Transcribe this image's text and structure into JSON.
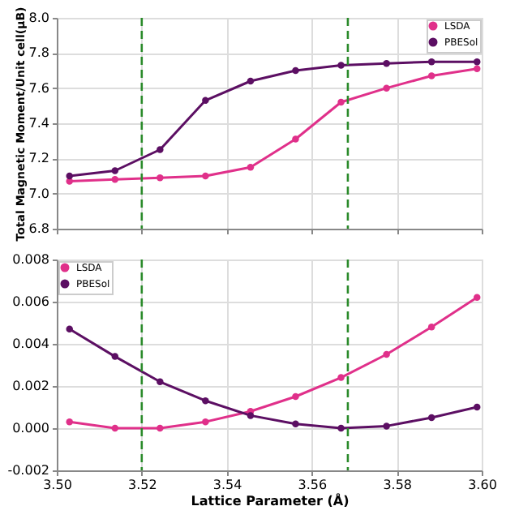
{
  "chart_data": [
    {
      "type": "line",
      "ylabel": "Total Magnetic Moment/Unit cell(μB)",
      "x": [
        3.503,
        3.5137,
        3.5243,
        3.535,
        3.5456,
        3.5562,
        3.5669,
        3.5776,
        3.5882,
        3.5989
      ],
      "series": [
        {
          "name": "LSDA",
          "color": "#e0308a",
          "values": [
            7.07,
            7.08,
            7.09,
            7.1,
            7.15,
            7.31,
            7.52,
            7.6,
            7.67,
            7.71
          ]
        },
        {
          "name": "PBESol",
          "color": "#5c0f63",
          "values": [
            7.1,
            7.13,
            7.25,
            7.53,
            7.64,
            7.7,
            7.73,
            7.74,
            7.75,
            7.75
          ]
        }
      ],
      "xlim": [
        3.5,
        3.6
      ],
      "xticks": [
        {
          "value": 3.5,
          "label": null
        },
        {
          "value": 3.52,
          "label": null
        },
        {
          "value": 3.54,
          "label": null
        },
        {
          "value": 3.56,
          "label": null
        },
        {
          "value": 3.58,
          "label": null
        },
        {
          "value": 3.6,
          "label": null
        }
      ],
      "ylim": [
        6.8,
        8.0
      ],
      "yticks": [
        {
          "value": 6.8,
          "label": "6.8"
        },
        {
          "value": 7.0,
          "label": "7.0"
        },
        {
          "value": 7.2,
          "label": "7.2"
        },
        {
          "value": 7.4,
          "label": "7.4"
        },
        {
          "value": 7.6,
          "label": "7.6"
        },
        {
          "value": 7.8,
          "label": "7.8"
        },
        {
          "value": 8.0,
          "label": "8.0"
        }
      ],
      "ref_lines": [
        {
          "axis": "x",
          "value": 3.52,
          "color": "#2a8a2a",
          "line_style": "dashed"
        },
        {
          "axis": "x",
          "value": 3.5685,
          "color": "#2a8a2a",
          "line_style": "dashed"
        }
      ],
      "grid": true,
      "legend": "top right",
      "marker": "circle",
      "line_style": "solid",
      "tick_labels": "y"
    },
    {
      "type": "line",
      "xlabel": "Lattice Parameter (Å)",
      "x": [
        3.503,
        3.5137,
        3.5243,
        3.535,
        3.5456,
        3.5562,
        3.5669,
        3.5776,
        3.5882,
        3.5989
      ],
      "series": [
        {
          "name": "LSDA",
          "color": "#e0308a",
          "values": [
            0.0003,
            0.0,
            0.0,
            0.0003,
            0.0008,
            0.0015,
            0.0024,
            0.0035,
            0.0048,
            0.0062
          ]
        },
        {
          "name": "PBESol",
          "color": "#5c0f63",
          "values": [
            0.0047,
            0.0034,
            0.0022,
            0.0013,
            0.0006,
            0.0002,
            0.0,
            0.0001,
            0.0005,
            0.001
          ]
        }
      ],
      "xlim": [
        3.5,
        3.6
      ],
      "xticks": [
        {
          "value": 3.5,
          "label": "3.50"
        },
        {
          "value": 3.52,
          "label": "3.52"
        },
        {
          "value": 3.54,
          "label": "3.54"
        },
        {
          "value": 3.56,
          "label": "3.56"
        },
        {
          "value": 3.58,
          "label": "3.58"
        },
        {
          "value": 3.6,
          "label": "3.60"
        }
      ],
      "ylim": [
        -0.002,
        0.008
      ],
      "yticks": [
        {
          "value": -0.002,
          "label": "-0.002"
        },
        {
          "value": 0.0,
          "label": "0.000"
        },
        {
          "value": 0.002,
          "label": "0.002"
        },
        {
          "value": 0.004,
          "label": "0.004"
        },
        {
          "value": 0.006,
          "label": "0.006"
        },
        {
          "value": 0.008,
          "label": "0.008"
        }
      ],
      "ref_lines": [
        {
          "axis": "x",
          "value": 3.52,
          "color": "#2a8a2a",
          "line_style": "dashed"
        },
        {
          "axis": "x",
          "value": 3.5685,
          "color": "#2a8a2a",
          "line_style": "dashed"
        }
      ],
      "grid": true,
      "legend": "top left",
      "marker": "circle",
      "line_style": "solid"
    }
  ]
}
